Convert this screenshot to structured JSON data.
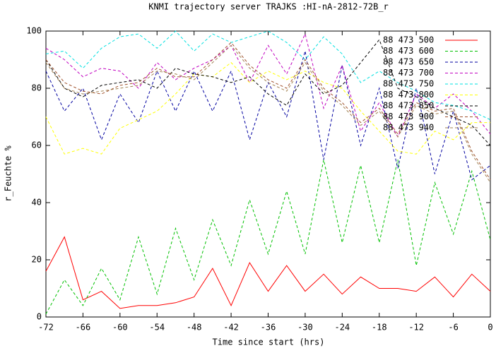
{
  "chart_data": {
    "type": "line",
    "title": "KNMI trajectory server TRAJKS :HI-nA-2812-72B_r",
    "xlabel": "Time since start (hrs)",
    "ylabel": "r_Feuchte %",
    "x": [
      -72,
      -69,
      -66,
      -63,
      -60,
      -57,
      -54,
      -51,
      -48,
      -45,
      -42,
      -39,
      -36,
      -33,
      -30,
      -27,
      -24,
      -21,
      -18,
      -15,
      -12,
      -9,
      -6,
      -3,
      0
    ],
    "xlim": [
      -72,
      0
    ],
    "xticks": [
      -72,
      -66,
      -60,
      -54,
      -48,
      -42,
      -36,
      -30,
      -24,
      -18,
      -12,
      -6,
      0
    ],
    "ylim": [
      0,
      100
    ],
    "yticks": [
      0,
      20,
      40,
      60,
      80,
      100
    ],
    "grid": false,
    "legend": "top-right",
    "series": [
      {
        "name": "88 473 500",
        "color": "#ff0000",
        "dashed": false,
        "values": [
          16,
          28,
          6,
          9,
          3,
          4,
          4,
          5,
          7,
          17,
          4,
          19,
          9,
          18,
          9,
          15,
          8,
          14,
          10,
          10,
          9,
          14,
          7,
          15,
          9
        ]
      },
      {
        "name": "88 473 600",
        "color": "#00c000",
        "dashed": true,
        "values": [
          1,
          13,
          4,
          17,
          6,
          28,
          8,
          31,
          13,
          34,
          18,
          41,
          22,
          44,
          22,
          55,
          26,
          53,
          26,
          55,
          18,
          47,
          29,
          51,
          27
        ]
      },
      {
        "name": "88 473 650",
        "color": "#0000a0",
        "dashed": true,
        "values": [
          86,
          72,
          80,
          62,
          78,
          68,
          86,
          72,
          86,
          72,
          86,
          62,
          82,
          70,
          93,
          55,
          88,
          60,
          80,
          52,
          80,
          50,
          72,
          48,
          53
        ]
      },
      {
        "name": "88 473 700",
        "color": "#c000c0",
        "dashed": true,
        "values": [
          94,
          90,
          84,
          87,
          86,
          80,
          89,
          83,
          87,
          90,
          95,
          82,
          95,
          85,
          99,
          73,
          88,
          65,
          75,
          63,
          78,
          73,
          78,
          72,
          64
        ]
      },
      {
        "name": "88 473 750",
        "color": "#00e0e0",
        "dashed": true,
        "values": [
          92,
          93,
          87,
          94,
          98,
          99,
          94,
          100,
          93,
          99,
          96,
          98,
          100,
          96,
          90,
          98,
          92,
          82,
          86,
          82,
          79,
          75,
          74,
          72,
          69
        ]
      },
      {
        "name": "88 473 800",
        "color": "#ffff00",
        "dashed": true,
        "values": [
          70,
          57,
          59,
          57,
          66,
          69,
          72,
          78,
          85,
          84,
          89,
          82,
          86,
          83,
          86,
          82,
          80,
          72,
          65,
          58,
          57,
          65,
          62,
          68,
          68
        ]
      },
      {
        "name": "88 473 850",
        "color": "#000000",
        "dashed": true,
        "values": [
          90,
          80,
          77,
          81,
          82,
          83,
          80,
          87,
          85,
          84,
          82,
          84,
          78,
          74,
          85,
          78,
          81,
          89,
          97,
          80,
          77,
          73,
          70,
          67,
          60
        ]
      },
      {
        "name": "88 473 900",
        "color": "#a0522d",
        "dashed": true,
        "values": [
          90,
          82,
          79,
          78,
          81,
          82,
          87,
          84,
          84,
          90,
          96,
          88,
          83,
          80,
          90,
          80,
          75,
          68,
          73,
          64,
          75,
          72,
          73,
          58,
          48
        ]
      },
      {
        "name": "88 473 940",
        "color": "#a08050",
        "dashed": true,
        "values": [
          89,
          80,
          78,
          79,
          80,
          81,
          86,
          85,
          83,
          89,
          95,
          87,
          82,
          79,
          89,
          79,
          74,
          67,
          72,
          63,
          74,
          71,
          72,
          57,
          47
        ]
      }
    ]
  }
}
